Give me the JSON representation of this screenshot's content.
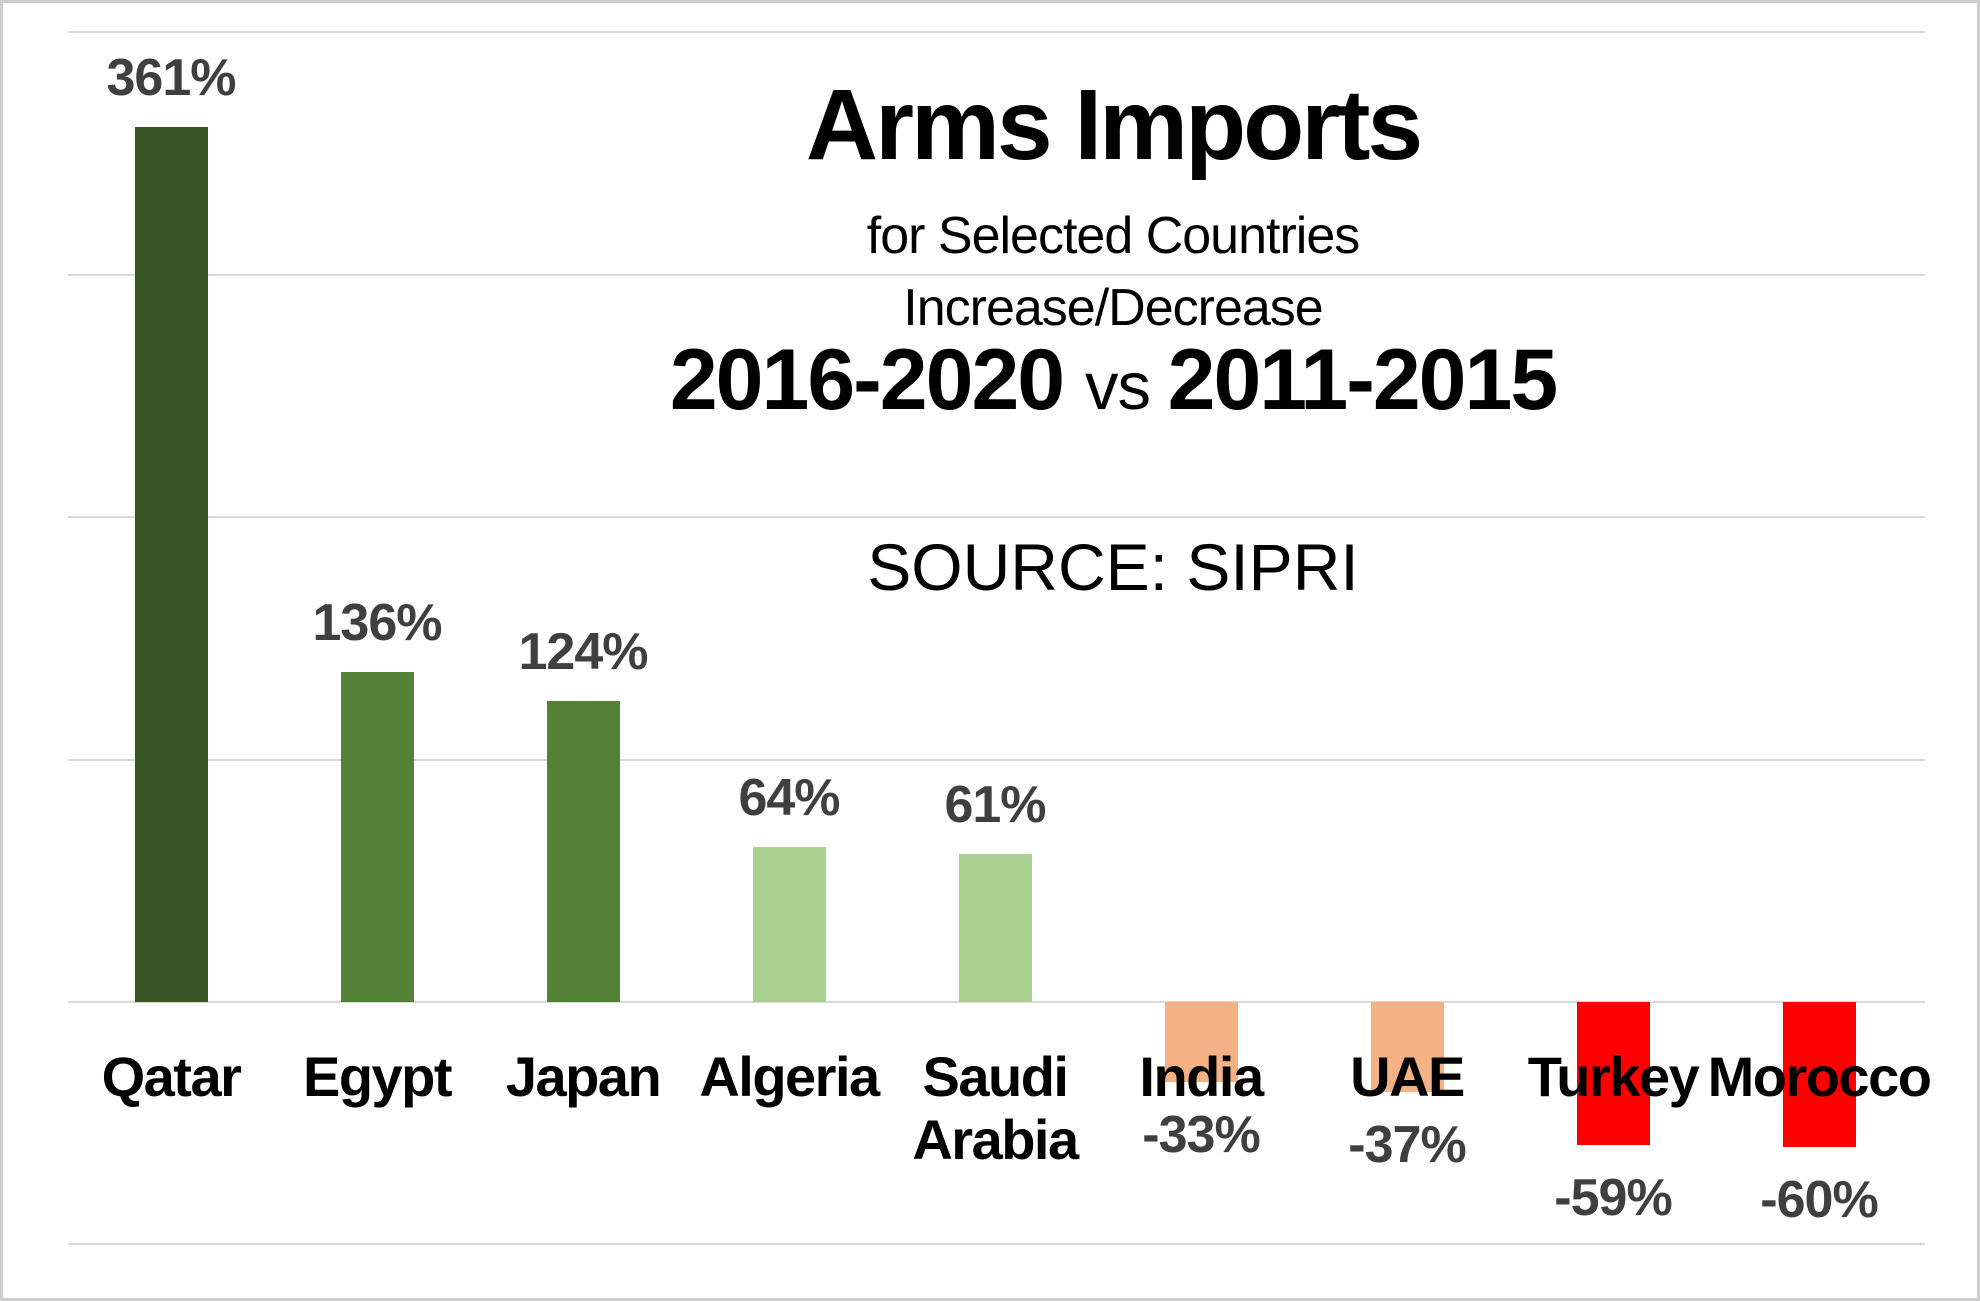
{
  "title": "Arms Imports",
  "subtitle1": "for Selected Countries",
  "subtitle2": "Increase/Decrease",
  "period_left": "2016-2020",
  "period_vs": "vs",
  "period_right": "2011-2015",
  "source": "SOURCE: SIPRI",
  "colors": {
    "dark_green": "#375623",
    "mid_green": "#538135",
    "light_green": "#a9d08e",
    "light_orange": "#f4b183",
    "red": "#ff0000",
    "value_label": "#3f3f3f",
    "category_label": "#000000",
    "gridline": "#d9d9d9",
    "border": "#cdcdcd",
    "background": "#ffffff"
  },
  "chart_data": {
    "type": "bar",
    "title": "Arms Imports for Selected Countries Increase/Decrease 2016-2020 vs 2011-2015",
    "subtitle": "SOURCE: SIPRI",
    "xlabel": "",
    "ylabel": "",
    "ylim": [
      -100,
      400
    ],
    "grid": true,
    "legend": false,
    "gridlines_pct": [
      400,
      300,
      200,
      100,
      0,
      -100
    ],
    "categories": [
      "Qatar",
      "Egypt",
      "Japan",
      "Algeria",
      "Saudi Arabia",
      "India",
      "UAE",
      "Turkey",
      "Morocco"
    ],
    "values": [
      361,
      136,
      124,
      64,
      61,
      -33,
      -37,
      -59,
      -60
    ],
    "labels": [
      "361%",
      "136%",
      "124%",
      "64%",
      "61%",
      "-33%",
      "-37%",
      "-59%",
      "-60%"
    ],
    "bar_colors": [
      "#375623",
      "#538135",
      "#538135",
      "#a9d08e",
      "#a9d08e",
      "#f4b183",
      "#f4b183",
      "#ff0000",
      "#ff0000"
    ]
  }
}
